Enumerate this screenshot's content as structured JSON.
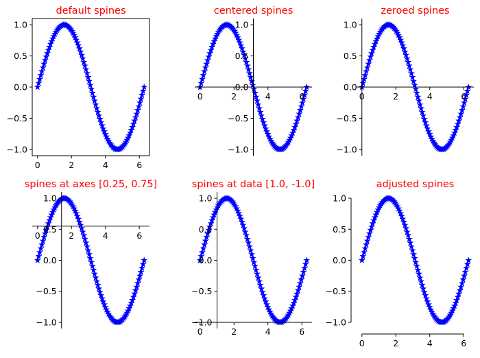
{
  "chart_data": [
    {
      "type": "line",
      "title": "default spines",
      "xlim": [
        -0.314,
        6.597
      ],
      "ylim": [
        -1.1,
        1.1
      ],
      "xticks": [
        0,
        2,
        4,
        6
      ],
      "yticks": [
        -1.0,
        -0.5,
        0.0,
        0.5,
        1.0
      ],
      "xtick_labels": [
        "0",
        "2",
        "4",
        "6"
      ],
      "ytick_labels": [
        "−1.0",
        "−0.5",
        "0.0",
        "0.5",
        "1.0"
      ],
      "series": [
        {
          "function": "sin(x)",
          "x_range": [
            0,
            6.283
          ],
          "n_points": 100,
          "marker": "*",
          "color": "#0000ff"
        }
      ],
      "spines": {
        "position": "default",
        "visible": [
          "left",
          "bottom",
          "right",
          "top"
        ]
      }
    },
    {
      "type": "line",
      "title": "centered spines",
      "xlim": [
        -0.314,
        6.597
      ],
      "ylim": [
        -1.1,
        1.1
      ],
      "xticks": [
        0,
        2,
        4,
        6
      ],
      "yticks": [
        -1.0,
        -0.5,
        0.0,
        0.5,
        1.0
      ],
      "xtick_labels": [
        "0",
        "2",
        "4",
        "6"
      ],
      "ytick_labels": [
        "−1.0",
        "−0.5",
        "0.0",
        "0.5",
        "1.0"
      ],
      "series": [
        {
          "function": "sin(x)",
          "x_range": [
            0,
            6.283
          ],
          "n_points": 100,
          "marker": "*",
          "color": "#0000ff"
        }
      ],
      "spines": {
        "position": "center",
        "visible": [
          "left",
          "bottom"
        ]
      }
    },
    {
      "type": "line",
      "title": "zeroed spines",
      "xlim": [
        -0.314,
        6.597
      ],
      "ylim": [
        -1.1,
        1.1
      ],
      "xticks": [
        0,
        2,
        4,
        6
      ],
      "yticks": [
        -1.0,
        -0.5,
        0.0,
        0.5,
        1.0
      ],
      "xtick_labels": [
        "0",
        "2",
        "4",
        "6"
      ],
      "ytick_labels": [
        "−1.0",
        "−0.5",
        "0.0",
        "0.5",
        "1.0"
      ],
      "series": [
        {
          "function": "sin(x)",
          "x_range": [
            0,
            6.283
          ],
          "n_points": 100,
          "marker": "*",
          "color": "#0000ff"
        }
      ],
      "spines": {
        "position": "zero",
        "visible": [
          "left",
          "bottom"
        ]
      }
    },
    {
      "type": "line",
      "title": "spines at axes [0.25, 0.75]",
      "xlim": [
        -0.314,
        6.597
      ],
      "ylim": [
        -1.1,
        1.1
      ],
      "xticks": [
        0,
        2,
        4,
        6
      ],
      "yticks": [
        -1.0,
        -0.5,
        0.0,
        0.5,
        1.0
      ],
      "xtick_labels": [
        "0",
        "2",
        "4",
        "6"
      ],
      "ytick_labels": [
        "−1.0",
        "−0.5",
        "0.0",
        "0.5",
        "1.0"
      ],
      "series": [
        {
          "function": "sin(x)",
          "x_range": [
            0,
            6.283
          ],
          "n_points": 100,
          "marker": "*",
          "color": "#0000ff"
        }
      ],
      "spines": {
        "position": "axes",
        "left_at": 0.25,
        "bottom_at": 0.75,
        "visible": [
          "left",
          "bottom"
        ]
      }
    },
    {
      "type": "line",
      "title": "spines at data [1.0, -1.0]",
      "xlim": [
        -0.314,
        6.597
      ],
      "ylim": [
        -1.1,
        1.1
      ],
      "xticks": [
        0,
        2,
        4,
        6
      ],
      "yticks": [
        -1.0,
        -0.5,
        0.0,
        0.5,
        1.0
      ],
      "xtick_labels": [
        "0",
        "2",
        "4",
        "6"
      ],
      "ytick_labels": [
        "−1.0",
        "−0.5",
        "0.0",
        "0.5",
        "1.0"
      ],
      "series": [
        {
          "function": "sin(x)",
          "x_range": [
            0,
            6.283
          ],
          "n_points": 100,
          "marker": "*",
          "color": "#0000ff"
        }
      ],
      "spines": {
        "position": "data",
        "left_at": 1.0,
        "bottom_at": -1.0,
        "visible": [
          "left",
          "bottom"
        ]
      }
    },
    {
      "type": "line",
      "title": "adjusted spines",
      "xlim": [
        -0.314,
        6.597
      ],
      "ylim": [
        -1.1,
        1.1
      ],
      "xticks": [
        0,
        2,
        4,
        6
      ],
      "yticks": [
        -1.0,
        -0.5,
        0.0,
        0.5,
        1.0
      ],
      "xtick_labels": [
        "0",
        "2",
        "4",
        "6"
      ],
      "ytick_labels": [
        "−1.0",
        "−0.5",
        "0.0",
        "0.5",
        "1.0"
      ],
      "series": [
        {
          "function": "sin(x)",
          "x_range": [
            0,
            6.283
          ],
          "n_points": 100,
          "marker": "*",
          "color": "#0000ff"
        }
      ],
      "spines": {
        "position": "outward",
        "visible": [
          "left",
          "bottom"
        ]
      }
    }
  ]
}
